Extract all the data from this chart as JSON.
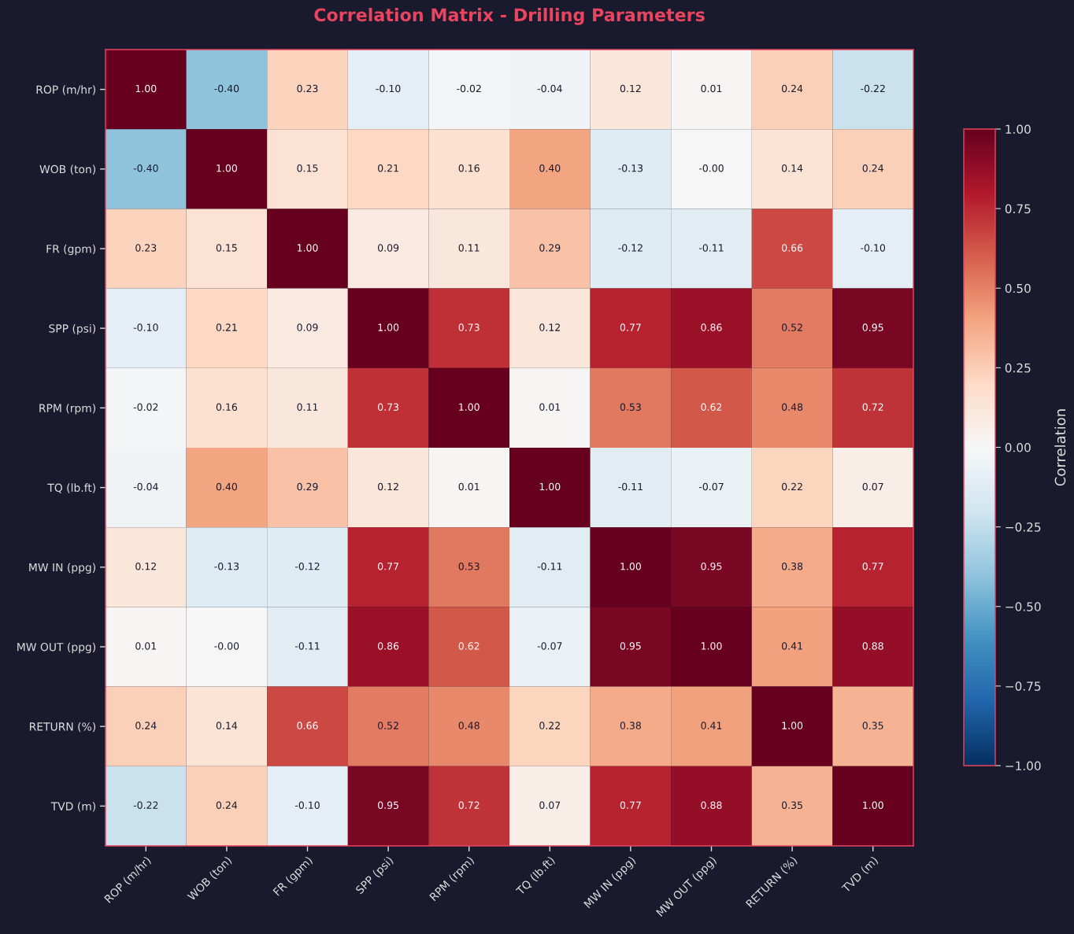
{
  "chart_data": {
    "type": "heatmap",
    "title": "Correlation Matrix - Drilling Parameters",
    "clabel": "Correlation",
    "categories": [
      "ROP (m/hr)",
      "WOB (ton)",
      "FR (gpm)",
      "SPP (psi)",
      "RPM (rpm)",
      "TQ (lb.ft)",
      "MW IN (ppg)",
      "MW OUT (ppg)",
      "RETURN (%)",
      "TVD (m)"
    ],
    "y_categories": [
      "ROP (m/hr)",
      "WOB (ton)",
      "FR (gpm)",
      "SPP (psi)",
      "RPM (rpm)",
      "TQ (lb.ft)",
      "MW IN (ppg)",
      "MW OUT (ppg)",
      "RETURN (%)",
      "TVD (m)"
    ],
    "cells": [
      [
        1.0,
        -0.4,
        0.23,
        -0.1,
        -0.02,
        -0.04,
        0.12,
        0.01,
        0.24,
        -0.22
      ],
      [
        -0.4,
        1.0,
        0.15,
        0.21,
        0.16,
        0.4,
        -0.13,
        0.0,
        0.14,
        0.24
      ],
      [
        0.23,
        0.15,
        1.0,
        0.09,
        0.11,
        0.29,
        -0.12,
        -0.11,
        0.66,
        -0.1
      ],
      [
        -0.1,
        0.21,
        0.09,
        1.0,
        0.73,
        0.12,
        0.77,
        0.86,
        0.52,
        0.95
      ],
      [
        -0.02,
        0.16,
        0.11,
        0.73,
        1.0,
        0.01,
        0.53,
        0.62,
        0.48,
        0.72
      ],
      [
        -0.04,
        0.4,
        0.29,
        0.12,
        0.01,
        1.0,
        -0.11,
        -0.07,
        0.22,
        0.07
      ],
      [
        0.12,
        -0.13,
        -0.12,
        0.77,
        0.53,
        -0.11,
        1.0,
        0.95,
        0.38,
        0.77
      ],
      [
        0.01,
        0.0,
        -0.11,
        0.86,
        0.62,
        -0.07,
        0.95,
        1.0,
        0.41,
        0.88
      ],
      [
        0.24,
        0.14,
        0.66,
        0.52,
        0.48,
        0.22,
        0.38,
        0.41,
        1.0,
        0.35
      ],
      [
        -0.22,
        0.24,
        -0.1,
        0.95,
        0.72,
        0.07,
        0.77,
        0.88,
        0.35,
        1.0
      ]
    ],
    "cell_labels": [
      [
        "1.00",
        "-0.40",
        "0.23",
        "-0.10",
        "-0.02",
        "-0.04",
        "0.12",
        "0.01",
        "0.24",
        "-0.22"
      ],
      [
        "-0.40",
        "1.00",
        "0.15",
        "0.21",
        "0.16",
        "0.40",
        "-0.13",
        "-0.00",
        "0.14",
        "0.24"
      ],
      [
        "0.23",
        "0.15",
        "1.00",
        "0.09",
        "0.11",
        "0.29",
        "-0.12",
        "-0.11",
        "0.66",
        "-0.10"
      ],
      [
        "-0.10",
        "0.21",
        "0.09",
        "1.00",
        "0.73",
        "0.12",
        "0.77",
        "0.86",
        "0.52",
        "0.95"
      ],
      [
        "-0.02",
        "0.16",
        "0.11",
        "0.73",
        "1.00",
        "0.01",
        "0.53",
        "0.62",
        "0.48",
        "0.72"
      ],
      [
        "-0.04",
        "0.40",
        "0.29",
        "0.12",
        "0.01",
        "1.00",
        "-0.11",
        "-0.07",
        "0.22",
        "0.07"
      ],
      [
        "0.12",
        "-0.13",
        "-0.12",
        "0.77",
        "0.53",
        "-0.11",
        "1.00",
        "0.95",
        "0.38",
        "0.77"
      ],
      [
        "0.01",
        "-0.00",
        "-0.11",
        "0.86",
        "0.62",
        "-0.07",
        "0.95",
        "1.00",
        "0.41",
        "0.88"
      ],
      [
        "0.24",
        "0.14",
        "0.66",
        "0.52",
        "0.48",
        "0.22",
        "0.38",
        "0.41",
        "1.00",
        "0.35"
      ],
      [
        "-0.22",
        "0.24",
        "-0.10",
        "0.95",
        "0.72",
        "0.07",
        "0.77",
        "0.88",
        "0.35",
        "1.00"
      ]
    ],
    "clim": [
      -1,
      1
    ],
    "cticks": [
      {
        "value": -1,
        "label": "−1.00"
      },
      {
        "value": -0.75,
        "label": "−0.75"
      },
      {
        "value": -0.5,
        "label": "−0.50"
      },
      {
        "value": -0.25,
        "label": "−0.25"
      },
      {
        "value": 0,
        "label": "0.00"
      },
      {
        "value": 0.25,
        "label": "0.25"
      },
      {
        "value": 0.5,
        "label": "0.50"
      },
      {
        "value": 0.75,
        "label": "0.75"
      },
      {
        "value": 1,
        "label": "1.00"
      }
    ]
  }
}
